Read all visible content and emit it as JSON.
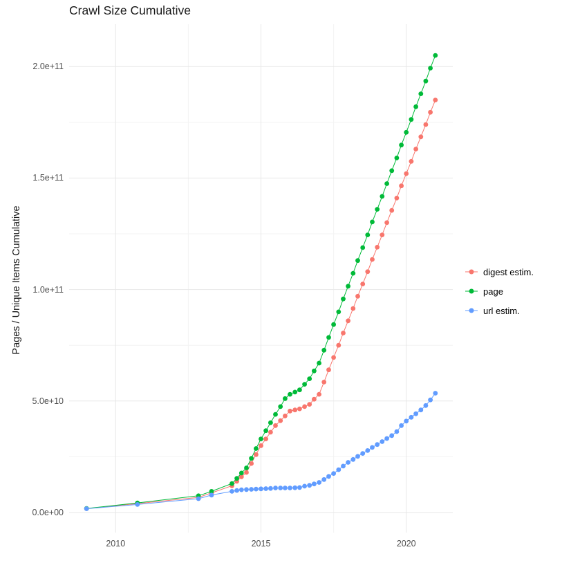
{
  "title": "Crawl Size Cumulative",
  "y_axis_label": "Pages / Unique Items Cumulative",
  "chart_data": {
    "type": "scatter",
    "title": "Crawl Size Cumulative",
    "xlabel": "",
    "ylabel": "Pages / Unique Items Cumulative",
    "y_unit": "1e9",
    "xlim": [
      2008.4,
      2021.6
    ],
    "ylim": [
      -9,
      219
    ],
    "grid": "on",
    "legend_position": "right",
    "background_color": "#ffffff",
    "grid_major_color": "#e7e7e7",
    "grid_minor_color": "#f3f3f3",
    "x_ticks": [
      {
        "value": 2010,
        "label": "2010"
      },
      {
        "value": 2015,
        "label": "2015"
      },
      {
        "value": 2020,
        "label": "2020"
      }
    ],
    "x_minor_ticks": [
      2012.5,
      2017.5
    ],
    "y_ticks": [
      {
        "value": 0,
        "label": "0.0e+00"
      },
      {
        "value": 50,
        "label": "5.0e+10"
      },
      {
        "value": 100,
        "label": "1.0e+11"
      },
      {
        "value": 150,
        "label": "1.5e+11"
      },
      {
        "value": 200,
        "label": "2.0e+11"
      }
    ],
    "y_minor_ticks": [
      25,
      75,
      125,
      175
    ],
    "series": [
      {
        "name": "digest estim.",
        "color": "#F8766D",
        "points": [
          [
            2009.0,
            1.75
          ],
          [
            2010.75,
            4.0
          ],
          [
            2012.85,
            6.8
          ],
          [
            2013.3,
            8.8
          ],
          [
            2014.0,
            12
          ],
          [
            2014.17,
            14
          ],
          [
            2014.33,
            16
          ],
          [
            2014.5,
            18
          ],
          [
            2014.67,
            22
          ],
          [
            2014.83,
            26
          ],
          [
            2015.0,
            30
          ],
          [
            2015.17,
            33
          ],
          [
            2015.33,
            36
          ],
          [
            2015.5,
            39
          ],
          [
            2015.67,
            41.2
          ],
          [
            2015.83,
            43.3
          ],
          [
            2016.0,
            45.5
          ],
          [
            2016.17,
            46
          ],
          [
            2016.33,
            46.5
          ],
          [
            2016.5,
            47.5
          ],
          [
            2016.67,
            48.5
          ],
          [
            2016.83,
            50.8
          ],
          [
            2017.0,
            53
          ],
          [
            2017.17,
            58.5
          ],
          [
            2017.33,
            64
          ],
          [
            2017.5,
            69.5
          ],
          [
            2017.67,
            75
          ],
          [
            2017.83,
            80.5
          ],
          [
            2018.0,
            86
          ],
          [
            2018.17,
            91.5
          ],
          [
            2018.33,
            97
          ],
          [
            2018.5,
            102.5
          ],
          [
            2018.67,
            108
          ],
          [
            2018.83,
            113.5
          ],
          [
            2019.0,
            119
          ],
          [
            2019.17,
            124.5
          ],
          [
            2019.33,
            130
          ],
          [
            2019.5,
            135.5
          ],
          [
            2019.67,
            141
          ],
          [
            2019.83,
            146.5
          ],
          [
            2020.0,
            152
          ],
          [
            2020.17,
            157.5
          ],
          [
            2020.33,
            163
          ],
          [
            2020.5,
            168.5
          ],
          [
            2020.67,
            174
          ],
          [
            2020.83,
            179.5
          ],
          [
            2021.0,
            185
          ]
        ]
      },
      {
        "name": "page",
        "color": "#00BA38",
        "points": [
          [
            2009.0,
            1.8
          ],
          [
            2010.75,
            4.3
          ],
          [
            2012.85,
            7.5
          ],
          [
            2013.3,
            9.5
          ],
          [
            2014.0,
            13
          ],
          [
            2014.17,
            15.3
          ],
          [
            2014.33,
            17.7
          ],
          [
            2014.5,
            20
          ],
          [
            2014.67,
            24.3
          ],
          [
            2014.83,
            28.7
          ],
          [
            2015.0,
            33
          ],
          [
            2015.17,
            36.7
          ],
          [
            2015.33,
            40.3
          ],
          [
            2015.5,
            44
          ],
          [
            2015.67,
            47.5
          ],
          [
            2015.83,
            51.1
          ],
          [
            2016.0,
            53
          ],
          [
            2016.17,
            54
          ],
          [
            2016.33,
            55
          ],
          [
            2016.5,
            57.5
          ],
          [
            2016.67,
            60
          ],
          [
            2016.83,
            63.5
          ],
          [
            2017.0,
            67
          ],
          [
            2017.17,
            72.8
          ],
          [
            2017.33,
            78.5
          ],
          [
            2017.5,
            84.3
          ],
          [
            2017.67,
            90
          ],
          [
            2017.83,
            95.8
          ],
          [
            2018.0,
            101.5
          ],
          [
            2018.17,
            107.3
          ],
          [
            2018.33,
            113
          ],
          [
            2018.5,
            118.8
          ],
          [
            2018.67,
            124.5
          ],
          [
            2018.83,
            130.3
          ],
          [
            2019.0,
            136
          ],
          [
            2019.17,
            141.8
          ],
          [
            2019.33,
            147.5
          ],
          [
            2019.5,
            153.3
          ],
          [
            2019.67,
            159
          ],
          [
            2019.83,
            164.8
          ],
          [
            2020.0,
            170.5
          ],
          [
            2020.17,
            176.3
          ],
          [
            2020.33,
            182
          ],
          [
            2020.5,
            187.8
          ],
          [
            2020.67,
            193.5
          ],
          [
            2020.83,
            199.3
          ],
          [
            2021.0,
            205
          ]
        ]
      },
      {
        "name": "url estim.",
        "color": "#619CFF",
        "points": [
          [
            2009.0,
            1.7
          ],
          [
            2010.75,
            3.6
          ],
          [
            2012.85,
            6.2
          ],
          [
            2013.3,
            7.8
          ],
          [
            2014.0,
            9.5
          ],
          [
            2014.17,
            9.9
          ],
          [
            2014.33,
            10.2
          ],
          [
            2014.5,
            10.3
          ],
          [
            2014.67,
            10.4
          ],
          [
            2014.83,
            10.5
          ],
          [
            2015.0,
            10.6
          ],
          [
            2015.17,
            10.7
          ],
          [
            2015.33,
            10.8
          ],
          [
            2015.5,
            11
          ],
          [
            2015.67,
            11
          ],
          [
            2015.83,
            11
          ],
          [
            2016.0,
            11
          ],
          [
            2016.17,
            11.1
          ],
          [
            2016.33,
            11.2
          ],
          [
            2016.5,
            11.8
          ],
          [
            2016.67,
            12.2
          ],
          [
            2016.83,
            12.8
          ],
          [
            2017.0,
            13.5
          ],
          [
            2017.17,
            14.8
          ],
          [
            2017.33,
            16.2
          ],
          [
            2017.5,
            17.5
          ],
          [
            2017.67,
            19.2
          ],
          [
            2017.83,
            20.8
          ],
          [
            2018.0,
            22.5
          ],
          [
            2018.17,
            23.8
          ],
          [
            2018.33,
            25.2
          ],
          [
            2018.5,
            26.5
          ],
          [
            2018.67,
            27.8
          ],
          [
            2018.83,
            29.2
          ],
          [
            2019.0,
            30.5
          ],
          [
            2019.17,
            31.8
          ],
          [
            2019.33,
            33.2
          ],
          [
            2019.5,
            34.5
          ],
          [
            2019.67,
            36.3
          ],
          [
            2019.83,
            39
          ],
          [
            2020.0,
            41
          ],
          [
            2020.17,
            42.7
          ],
          [
            2020.33,
            44.3
          ],
          [
            2020.5,
            46
          ],
          [
            2020.67,
            48
          ],
          [
            2020.83,
            50.5
          ],
          [
            2021.0,
            53.5
          ]
        ]
      }
    ]
  }
}
